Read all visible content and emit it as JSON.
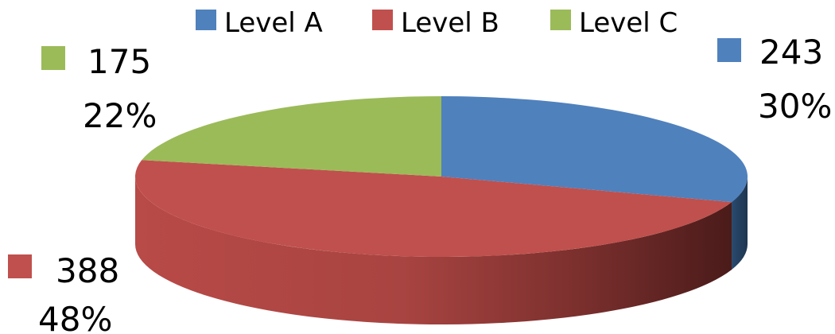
{
  "chart_data": {
    "type": "pie",
    "title": "",
    "legend_position": "top",
    "categories": [
      "Level A",
      "Level B",
      "Level C"
    ],
    "values": [
      243,
      388,
      175
    ],
    "percents": [
      "30%",
      "48%",
      "22%"
    ],
    "value_labels": [
      "243",
      "388",
      "175"
    ],
    "colors": [
      "#4f81bd",
      "#c0504d",
      "#9bbb59"
    ],
    "legend": {
      "items": [
        {
          "label": "Level A",
          "color": "#4f81bd"
        },
        {
          "label": "Level B",
          "color": "#c0504d"
        },
        {
          "label": "Level C",
          "color": "#9bbb59"
        }
      ]
    }
  }
}
